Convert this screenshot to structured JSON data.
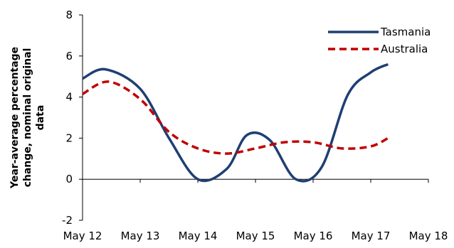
{
  "chart_data": {
    "type": "line",
    "title": "",
    "xlabel": "",
    "ylabel_lines": [
      "Year-average percentage",
      "change, nominal original",
      "data"
    ],
    "ylim": [
      -2,
      8
    ],
    "y_ticks": [
      -2,
      0,
      2,
      4,
      6,
      8
    ],
    "x_ticks": [
      "May 12",
      "May 13",
      "May 14",
      "May 15",
      "May 16",
      "May 17",
      "May 18"
    ],
    "x_range": [
      0,
      6
    ],
    "grid": false,
    "legend_position": "top-right",
    "series": [
      {
        "name": "Tasmania",
        "color": "#1f3f73",
        "style": "solid",
        "points": [
          [
            0,
            4.9
          ],
          [
            0.4,
            5.35
          ],
          [
            1.0,
            4.4
          ],
          [
            1.5,
            2.0
          ],
          [
            2.0,
            0.0
          ],
          [
            2.5,
            0.5
          ],
          [
            2.85,
            2.15
          ],
          [
            3.25,
            1.9
          ],
          [
            3.7,
            0.0
          ],
          [
            4.15,
            0.6
          ],
          [
            4.6,
            4.1
          ],
          [
            5.0,
            5.2
          ],
          [
            5.3,
            5.6
          ]
        ]
      },
      {
        "name": "Australia",
        "color": "#c00000",
        "style": "dashed",
        "points": [
          [
            0,
            4.15
          ],
          [
            0.45,
            4.75
          ],
          [
            1.0,
            3.9
          ],
          [
            1.5,
            2.3
          ],
          [
            2.0,
            1.5
          ],
          [
            2.5,
            1.25
          ],
          [
            3.0,
            1.5
          ],
          [
            3.5,
            1.8
          ],
          [
            4.0,
            1.8
          ],
          [
            4.5,
            1.5
          ],
          [
            5.0,
            1.6
          ],
          [
            5.3,
            2.0
          ]
        ]
      }
    ]
  }
}
